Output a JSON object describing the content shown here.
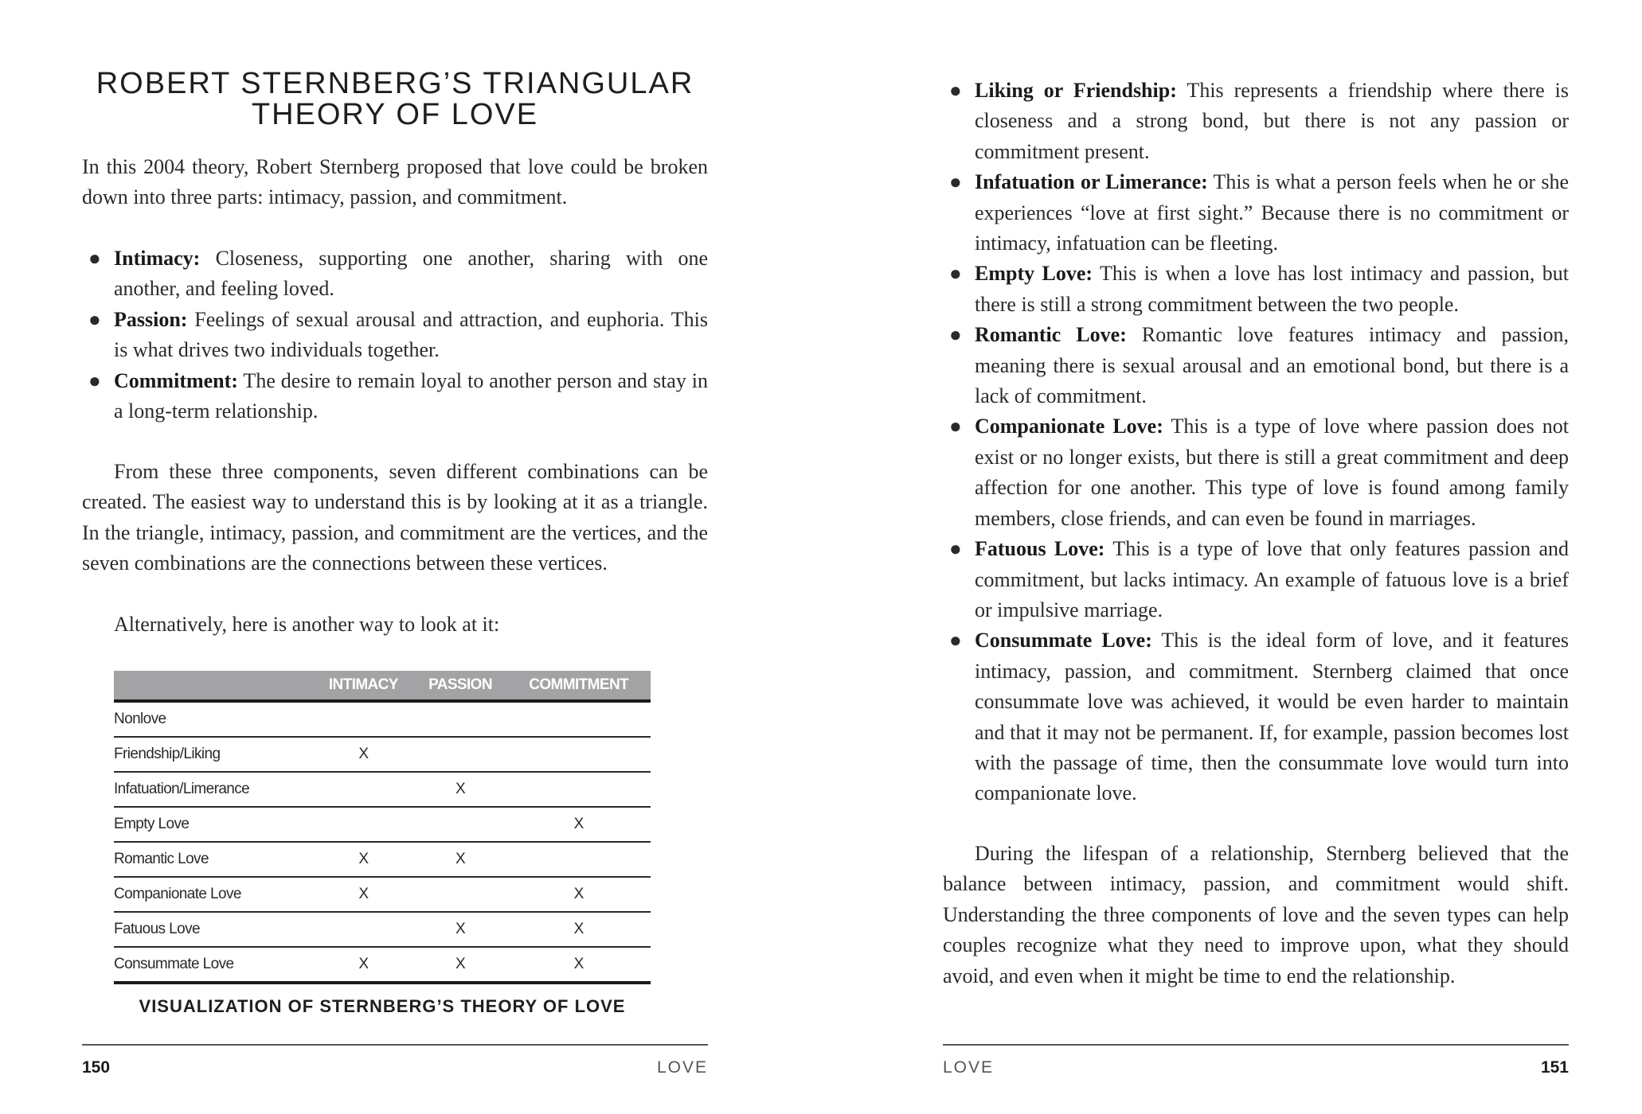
{
  "left_page": {
    "title_line1": "ROBERT STERNBERG’S TRIANGULAR",
    "title_line2": "THEORY OF LOVE",
    "intro": "In this 2004 theory, Robert Sternberg proposed that love could be broken down into three parts: intimacy, passion, and commitment.",
    "components": [
      {
        "term": "Intimacy:",
        "text": " Closeness, supporting one another, sharing with one another, and feeling loved."
      },
      {
        "term": "Passion:",
        "text": " Feelings of sexual arousal and attraction, and euphoria. This is what drives two individuals together."
      },
      {
        "term": "Commitment:",
        "text": " The desire to remain loyal to another person and stay in a long-term relationship."
      }
    ],
    "paragraph1": "From these three components, seven different combinations can be created. The easiest way to understand this is by looking at it as a triangle. In the triangle, intimacy, passion, and commitment are the vertices, and the seven combinations are the connections between these vertices.",
    "paragraph2": "Alternatively, here is another way to look at it:",
    "table": {
      "headers": [
        "",
        "INTIMACY",
        "PASSION",
        "COMMITMENT"
      ],
      "rows": [
        [
          "Nonlove",
          "",
          "",
          ""
        ],
        [
          "Friendship/Liking",
          "X",
          "",
          ""
        ],
        [
          "Infatuation/Limerance",
          "",
          "X",
          ""
        ],
        [
          "Empty Love",
          "",
          "",
          "X"
        ],
        [
          "Romantic Love",
          "X",
          "X",
          ""
        ],
        [
          "Companionate Love",
          "X",
          "",
          "X"
        ],
        [
          "Fatuous Love",
          "",
          "X",
          "X"
        ],
        [
          "Consummate Love",
          "X",
          "X",
          "X"
        ]
      ],
      "header_bg": "#a3a3a5"
    },
    "caption": "VISUALIZATION OF STERNBERG’S THEORY OF LOVE",
    "page_number": "150",
    "section": "LOVE"
  },
  "right_page": {
    "types": [
      {
        "term": "Liking or Friendship:",
        "text": " This represents a friendship where there is closeness and a strong bond, but there is not any passion or commitment present."
      },
      {
        "term": "Infatuation or Limerance:",
        "text": " This is what a person feels when he or she experiences “love at first sight.” Because there is no commitment or intimacy, infatuation can be fleeting."
      },
      {
        "term": "Empty Love:",
        "text": " This is when a love has lost intimacy and passion, but there is still a strong commitment between the two people."
      },
      {
        "term": "Romantic Love:",
        "text": " Romantic love features intimacy and passion, meaning there is sexual arousal and an emotional bond, but there is a lack of commitment."
      },
      {
        "term": "Companionate Love:",
        "text": " This is a type of love where passion does not exist or no longer exists, but there is still a great commitment and deep affection for one another. This type of love is found among family members, close friends, and can even be found in marriages."
      },
      {
        "term": "Fatuous Love:",
        "text": " This is a type of love that only features passion and commitment, but lacks intimacy. An example of fatuous love is a brief or impulsive marriage."
      },
      {
        "term": "Consummate Love:",
        "text": " This is the ideal form of love, and it features intimacy, passion, and commitment. Sternberg claimed that once consummate love was achieved, it would be even harder to maintain and that it may not be permanent. If, for example, passion becomes lost with the passage of time, then the consummate love would turn into companionate love."
      }
    ],
    "paragraph": "During the lifespan of a relationship, Sternberg believed that the balance between intimacy, passion, and commitment would shift. Understanding the three components of love and the seven types can help couples recognize what they need to improve upon, what they should avoid, and even when it might be time to end the relationship.",
    "page_number": "151",
    "section": "LOVE"
  }
}
